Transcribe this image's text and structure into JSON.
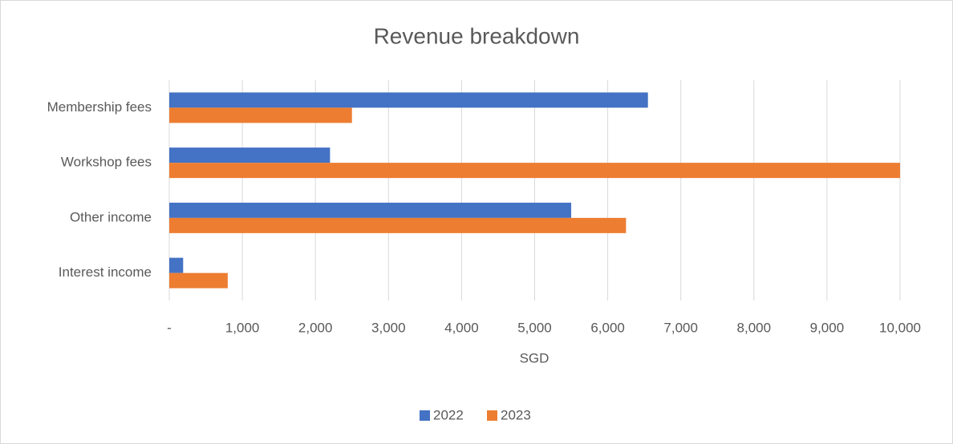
{
  "chart_data": {
    "type": "bar",
    "orientation": "horizontal",
    "title": "Revenue breakdown",
    "x_label": "SGD",
    "categories": [
      "Membership fees",
      "Workshop fees",
      "Other income",
      "Interest income"
    ],
    "series": [
      {
        "name": "2022",
        "color": "#4472c4",
        "values": [
          6550,
          2200,
          5500,
          190
        ]
      },
      {
        "name": "2023",
        "color": "#ed7d31",
        "values": [
          2500,
          10000,
          6250,
          800
        ]
      }
    ],
    "xlim": [
      0,
      10000
    ],
    "xticks": [
      {
        "value": 0,
        "label": "-"
      },
      {
        "value": 1000,
        "label": "1,000"
      },
      {
        "value": 2000,
        "label": "2,000"
      },
      {
        "value": 3000,
        "label": "3,000"
      },
      {
        "value": 4000,
        "label": "4,000"
      },
      {
        "value": 5000,
        "label": "5,000"
      },
      {
        "value": 6000,
        "label": "6,000"
      },
      {
        "value": 7000,
        "label": "7,000"
      },
      {
        "value": 8000,
        "label": "8,000"
      },
      {
        "value": 9000,
        "label": "9,000"
      },
      {
        "value": 10000,
        "label": "10,000"
      }
    ],
    "grid": true,
    "legend": "bottom"
  }
}
